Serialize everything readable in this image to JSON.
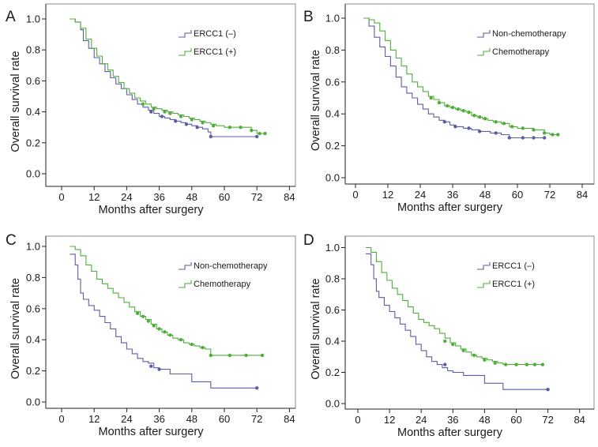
{
  "chart_data": [
    {
      "type": "line",
      "panel": "A",
      "xlabel": "Months after surgery",
      "ylabel": "Overall survival rate",
      "xticks": [
        "0",
        "12",
        "24",
        "36",
        "48",
        "60",
        "72",
        "84"
      ],
      "yticks": [
        "0.0",
        "0.2",
        "0.4",
        "0.6",
        "0.8",
        "1.0"
      ],
      "xlim": [
        0,
        84
      ],
      "ylim": [
        0,
        1
      ],
      "legend_position": "top-right",
      "series": [
        {
          "name": "ERCC1 (–)",
          "color": "#5b5ea6",
          "x": [
            3,
            5,
            7,
            8,
            10,
            12,
            14,
            16,
            18,
            20,
            22,
            24,
            26,
            28,
            30,
            32,
            34,
            36,
            38,
            40,
            42,
            44,
            46,
            48,
            50,
            52,
            54,
            55,
            60,
            66,
            72
          ],
          "y": [
            1.0,
            0.98,
            0.93,
            0.86,
            0.81,
            0.75,
            0.71,
            0.66,
            0.62,
            0.58,
            0.55,
            0.51,
            0.48,
            0.45,
            0.43,
            0.41,
            0.39,
            0.37,
            0.36,
            0.35,
            0.34,
            0.33,
            0.32,
            0.31,
            0.3,
            0.29,
            0.27,
            0.24,
            0.24,
            0.24,
            0.24
          ],
          "censored": [
            [
              33,
              0.4
            ],
            [
              37,
              0.37
            ],
            [
              42,
              0.34
            ],
            [
              46,
              0.32
            ],
            [
              50,
              0.3
            ],
            [
              55,
              0.24
            ],
            [
              72,
              0.24
            ]
          ]
        },
        {
          "name": "ERCC1 (+)",
          "color": "#4fae3a",
          "x": [
            3,
            5,
            7,
            9,
            11,
            13,
            15,
            17,
            19,
            21,
            23,
            25,
            27,
            29,
            31,
            33,
            35,
            37,
            39,
            41,
            43,
            45,
            47,
            49,
            51,
            53,
            55,
            57,
            60,
            66,
            70,
            72,
            75
          ],
          "y": [
            1.0,
            0.98,
            0.94,
            0.87,
            0.81,
            0.76,
            0.71,
            0.67,
            0.63,
            0.59,
            0.55,
            0.52,
            0.49,
            0.47,
            0.45,
            0.43,
            0.42,
            0.41,
            0.4,
            0.39,
            0.38,
            0.37,
            0.36,
            0.35,
            0.34,
            0.33,
            0.32,
            0.31,
            0.3,
            0.3,
            0.28,
            0.26,
            0.26
          ],
          "censored": [
            [
              30,
              0.45
            ],
            [
              34,
              0.42
            ],
            [
              38,
              0.4
            ],
            [
              40,
              0.39
            ],
            [
              44,
              0.37
            ],
            [
              48,
              0.35
            ],
            [
              52,
              0.33
            ],
            [
              56,
              0.31
            ],
            [
              62,
              0.3
            ],
            [
              66,
              0.3
            ],
            [
              70,
              0.28
            ],
            [
              73,
              0.26
            ],
            [
              75,
              0.26
            ]
          ]
        }
      ]
    },
    {
      "type": "line",
      "panel": "B",
      "xlabel": "Months after surgery",
      "ylabel": "Overall survival rate",
      "xticks": [
        "0",
        "12",
        "24",
        "36",
        "48",
        "60",
        "72",
        "84"
      ],
      "yticks": [
        "0.0",
        "0.2",
        "0.4",
        "0.6",
        "0.8",
        "1.0"
      ],
      "xlim": [
        0,
        84
      ],
      "ylim": [
        0,
        1
      ],
      "legend_position": "top-right",
      "series": [
        {
          "name": "Non-chemotherapy",
          "color": "#5b5ea6",
          "x": [
            3,
            5,
            7,
            9,
            11,
            13,
            15,
            17,
            19,
            21,
            23,
            25,
            27,
            29,
            31,
            33,
            35,
            37,
            40,
            43,
            46,
            50,
            54,
            57,
            60,
            66,
            70
          ],
          "y": [
            1.0,
            0.95,
            0.88,
            0.82,
            0.76,
            0.7,
            0.63,
            0.57,
            0.53,
            0.5,
            0.46,
            0.43,
            0.4,
            0.38,
            0.36,
            0.35,
            0.33,
            0.32,
            0.31,
            0.3,
            0.29,
            0.28,
            0.27,
            0.25,
            0.25,
            0.25,
            0.25
          ],
          "censored": [
            [
              33,
              0.35
            ],
            [
              37,
              0.32
            ],
            [
              42,
              0.31
            ],
            [
              46,
              0.29
            ],
            [
              52,
              0.28
            ],
            [
              57,
              0.25
            ],
            [
              62,
              0.25
            ],
            [
              66,
              0.25
            ],
            [
              70,
              0.25
            ]
          ]
        },
        {
          "name": "Chemotherapy",
          "color": "#4fae3a",
          "x": [
            3,
            5,
            7,
            9,
            11,
            13,
            15,
            17,
            19,
            21,
            23,
            25,
            27,
            29,
            31,
            33,
            35,
            37,
            39,
            41,
            43,
            45,
            47,
            49,
            51,
            54,
            57,
            60,
            66,
            70,
            72,
            75
          ],
          "y": [
            1.0,
            0.99,
            0.97,
            0.92,
            0.86,
            0.8,
            0.75,
            0.7,
            0.65,
            0.6,
            0.57,
            0.54,
            0.51,
            0.49,
            0.47,
            0.45,
            0.44,
            0.43,
            0.42,
            0.41,
            0.39,
            0.38,
            0.37,
            0.36,
            0.35,
            0.34,
            0.32,
            0.31,
            0.3,
            0.28,
            0.27,
            0.27
          ],
          "censored": [
            [
              28,
              0.5
            ],
            [
              31,
              0.47
            ],
            [
              34,
              0.45
            ],
            [
              36,
              0.44
            ],
            [
              38,
              0.43
            ],
            [
              40,
              0.42
            ],
            [
              42,
              0.41
            ],
            [
              44,
              0.39
            ],
            [
              46,
              0.38
            ],
            [
              48,
              0.37
            ],
            [
              52,
              0.35
            ],
            [
              55,
              0.34
            ],
            [
              58,
              0.32
            ],
            [
              62,
              0.31
            ],
            [
              66,
              0.3
            ],
            [
              70,
              0.28
            ],
            [
              73,
              0.27
            ],
            [
              75,
              0.27
            ]
          ]
        }
      ]
    },
    {
      "type": "line",
      "panel": "C",
      "xlabel": "Months after surgery",
      "ylabel": "Overall survival rate",
      "xticks": [
        "0",
        "12",
        "24",
        "36",
        "48",
        "60",
        "72",
        "84"
      ],
      "yticks": [
        "0.0",
        "0.2",
        "0.4",
        "0.6",
        "0.8",
        "1.0"
      ],
      "xlim": [
        0,
        84
      ],
      "ylim": [
        0,
        1
      ],
      "legend_position": "top-right",
      "series": [
        {
          "name": "Non-chemotherapy",
          "color": "#5b5ea6",
          "x": [
            3,
            5,
            6,
            7,
            8,
            10,
            12,
            14,
            16,
            18,
            20,
            22,
            24,
            26,
            28,
            30,
            32,
            34,
            36,
            40,
            48,
            55,
            60,
            66,
            72
          ],
          "y": [
            0.95,
            0.88,
            0.79,
            0.7,
            0.66,
            0.62,
            0.59,
            0.55,
            0.51,
            0.47,
            0.42,
            0.38,
            0.34,
            0.31,
            0.28,
            0.26,
            0.25,
            0.22,
            0.21,
            0.18,
            0.13,
            0.09,
            0.09,
            0.09,
            0.09
          ],
          "censored": [
            [
              33,
              0.23
            ],
            [
              36,
              0.21
            ],
            [
              72,
              0.09
            ]
          ]
        },
        {
          "name": "Chemotherapy",
          "color": "#4fae3a",
          "x": [
            3,
            5,
            7,
            9,
            11,
            13,
            15,
            17,
            19,
            21,
            23,
            25,
            27,
            29,
            31,
            33,
            35,
            37,
            39,
            41,
            43,
            45,
            47,
            49,
            51,
            53,
            55,
            60,
            66,
            72,
            74
          ],
          "y": [
            1.0,
            0.98,
            0.94,
            0.88,
            0.84,
            0.79,
            0.76,
            0.73,
            0.7,
            0.67,
            0.64,
            0.61,
            0.58,
            0.55,
            0.53,
            0.5,
            0.47,
            0.45,
            0.43,
            0.41,
            0.4,
            0.38,
            0.37,
            0.36,
            0.35,
            0.34,
            0.3,
            0.3,
            0.3,
            0.3,
            0.3
          ],
          "censored": [
            [
              28,
              0.57
            ],
            [
              30,
              0.55
            ],
            [
              32,
              0.52
            ],
            [
              34,
              0.49
            ],
            [
              36,
              0.47
            ],
            [
              38,
              0.45
            ],
            [
              40,
              0.43
            ],
            [
              44,
              0.4
            ],
            [
              48,
              0.37
            ],
            [
              52,
              0.35
            ],
            [
              55,
              0.3
            ],
            [
              62,
              0.3
            ],
            [
              68,
              0.3
            ],
            [
              74,
              0.3
            ]
          ]
        }
      ]
    },
    {
      "type": "line",
      "panel": "D",
      "xlabel": "Months after surgery",
      "ylabel": "Overall survival rate",
      "xticks": [
        "0",
        "12",
        "24",
        "36",
        "48",
        "60",
        "72",
        "84"
      ],
      "yticks": [
        "0.0",
        "0.2",
        "0.4",
        "0.6",
        "0.8",
        "1.0"
      ],
      "xlim": [
        0,
        84
      ],
      "ylim": [
        0,
        1
      ],
      "legend_position": "top-right",
      "series": [
        {
          "name": "ERCC1 (–)",
          "color": "#5b5ea6",
          "x": [
            3,
            5,
            6,
            7,
            8,
            10,
            12,
            14,
            16,
            18,
            20,
            22,
            24,
            26,
            28,
            30,
            32,
            34,
            36,
            40,
            48,
            55,
            60,
            66,
            72
          ],
          "y": [
            0.96,
            0.89,
            0.8,
            0.72,
            0.68,
            0.63,
            0.59,
            0.55,
            0.51,
            0.47,
            0.43,
            0.38,
            0.34,
            0.3,
            0.27,
            0.25,
            0.23,
            0.21,
            0.2,
            0.18,
            0.13,
            0.09,
            0.09,
            0.09,
            0.09
          ],
          "censored": [
            [
              33,
              0.25
            ],
            [
              72,
              0.09
            ]
          ]
        },
        {
          "name": "ERCC1 (+)",
          "color": "#4fae3a",
          "x": [
            3,
            5,
            7,
            9,
            11,
            13,
            15,
            17,
            19,
            21,
            23,
            25,
            27,
            29,
            31,
            33,
            35,
            37,
            39,
            41,
            43,
            45,
            47,
            49,
            51,
            53,
            55,
            60,
            66,
            70
          ],
          "y": [
            1.0,
            0.97,
            0.91,
            0.84,
            0.79,
            0.74,
            0.7,
            0.66,
            0.62,
            0.58,
            0.54,
            0.52,
            0.5,
            0.48,
            0.45,
            0.42,
            0.39,
            0.37,
            0.35,
            0.33,
            0.31,
            0.3,
            0.29,
            0.28,
            0.27,
            0.26,
            0.25,
            0.25,
            0.25,
            0.25
          ],
          "censored": [
            [
              33,
              0.4
            ],
            [
              36,
              0.38
            ],
            [
              40,
              0.34
            ],
            [
              44,
              0.31
            ],
            [
              48,
              0.28
            ],
            [
              52,
              0.26
            ],
            [
              56,
              0.25
            ],
            [
              60,
              0.25
            ],
            [
              64,
              0.25
            ],
            [
              67,
              0.25
            ],
            [
              70,
              0.25
            ]
          ]
        }
      ]
    }
  ]
}
